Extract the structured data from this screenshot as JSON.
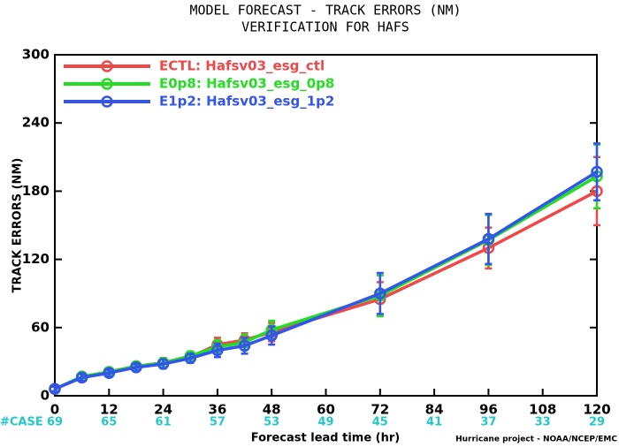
{
  "chart_data": {
    "type": "line",
    "title": "MODEL FORECAST - TRACK ERRORS (NM)",
    "subtitle": "VERIFICATION FOR HAFS",
    "y_label": "TRACK ERRORS (NM)",
    "x_label": "Forecast lead time (hr)",
    "footer": "Hurricane project - NOAA/NCEP/EMC",
    "case_label": "#CASE",
    "case_counts": [
      69,
      65,
      61,
      57,
      53,
      49,
      45,
      41,
      37,
      33,
      29
    ],
    "x": [
      0,
      6,
      12,
      18,
      24,
      30,
      36,
      42,
      48,
      72,
      96,
      120
    ],
    "xlim": [
      0,
      120
    ],
    "xticks": [
      0,
      12,
      24,
      36,
      48,
      60,
      72,
      84,
      96,
      108,
      120
    ],
    "ylim": [
      0,
      300
    ],
    "yticks": [
      0,
      60,
      120,
      180,
      240,
      300
    ],
    "legend": "upper left",
    "series": [
      {
        "name": "ECTL: Hafsv03_esg_ctl",
        "color": "#f04848",
        "values": [
          6,
          16,
          21,
          26,
          29,
          34,
          45,
          49,
          56,
          85,
          130,
          180
        ],
        "errors": [
          2,
          3,
          3,
          3,
          4,
          4,
          6,
          6,
          8,
          15,
          18,
          30
        ]
      },
      {
        "name": "E0p8: Hafsv03_esg_0p8",
        "color": "#22dd22",
        "values": [
          6,
          17,
          21,
          26,
          29,
          35,
          43,
          47,
          58,
          88,
          137,
          193
        ],
        "errors": [
          2,
          3,
          3,
          3,
          4,
          4,
          6,
          7,
          8,
          18,
          22,
          28
        ]
      },
      {
        "name": "E1p2: Hafsv03_esg_1p2",
        "color": "#3355ee",
        "values": [
          6,
          16,
          20,
          25,
          28,
          33,
          40,
          44,
          53,
          90,
          138,
          197
        ],
        "errors": [
          2,
          3,
          3,
          3,
          4,
          4,
          6,
          7,
          8,
          18,
          22,
          25
        ]
      }
    ]
  }
}
